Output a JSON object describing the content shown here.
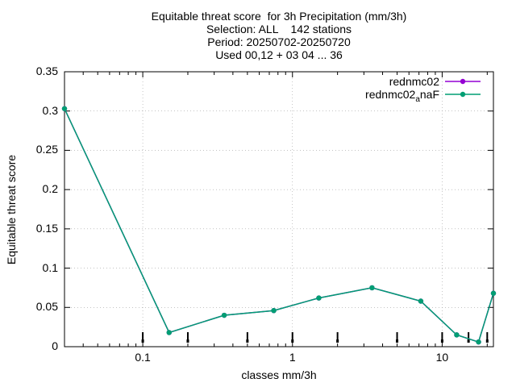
{
  "chart_data": {
    "type": "line",
    "title_lines": [
      "Equitable threat score  for 3h Precipitation (mm/3h)",
      "Selection: ALL    142 stations",
      "Period: 20250702-20250720",
      "Used 00,12 + 03 04 ... 36"
    ],
    "xlabel": "classes mm/3h",
    "ylabel": "Equitable threat score",
    "x_scale": "log",
    "xlim": [
      0.03,
      22
    ],
    "ylim": [
      0,
      0.35
    ],
    "grid": true,
    "legend_position": "top-right",
    "y_ticks": [
      "0",
      "0.05",
      "0.1",
      "0.15",
      "0.2",
      "0.25",
      "0.3",
      "0.35"
    ],
    "y_tick_values": [
      0,
      0.05,
      0.1,
      0.15,
      0.2,
      0.25,
      0.3,
      0.35
    ],
    "x_ticks": [
      "0.1",
      "1",
      "10"
    ],
    "x_tick_values": [
      0.1,
      1,
      10
    ],
    "x": [
      0.03,
      0.15,
      0.35,
      0.75,
      1.5,
      3.4,
      7.2,
      12.5,
      17.5,
      22
    ],
    "series": [
      {
        "name": "rednmc02",
        "legend_main": "rednmc02",
        "legend_sub": "",
        "legend_tail": "",
        "color": "#9400d3",
        "values": [
          0.303,
          0.018,
          0.04,
          0.046,
          0.062,
          0.075,
          0.058,
          0.015,
          0.006,
          0.068
        ]
      },
      {
        "name": "rednmc02_anaF",
        "legend_main": "rednmc02",
        "legend_sub": "a",
        "legend_tail": "naF",
        "color": "#009e73",
        "values": [
          0.303,
          0.018,
          0.04,
          0.046,
          0.062,
          0.075,
          0.058,
          0.015,
          0.006,
          0.068
        ]
      }
    ],
    "count_markers_x": [
      0.1,
      0.2,
      0.5,
      1,
      2,
      5,
      10,
      15,
      20
    ]
  }
}
